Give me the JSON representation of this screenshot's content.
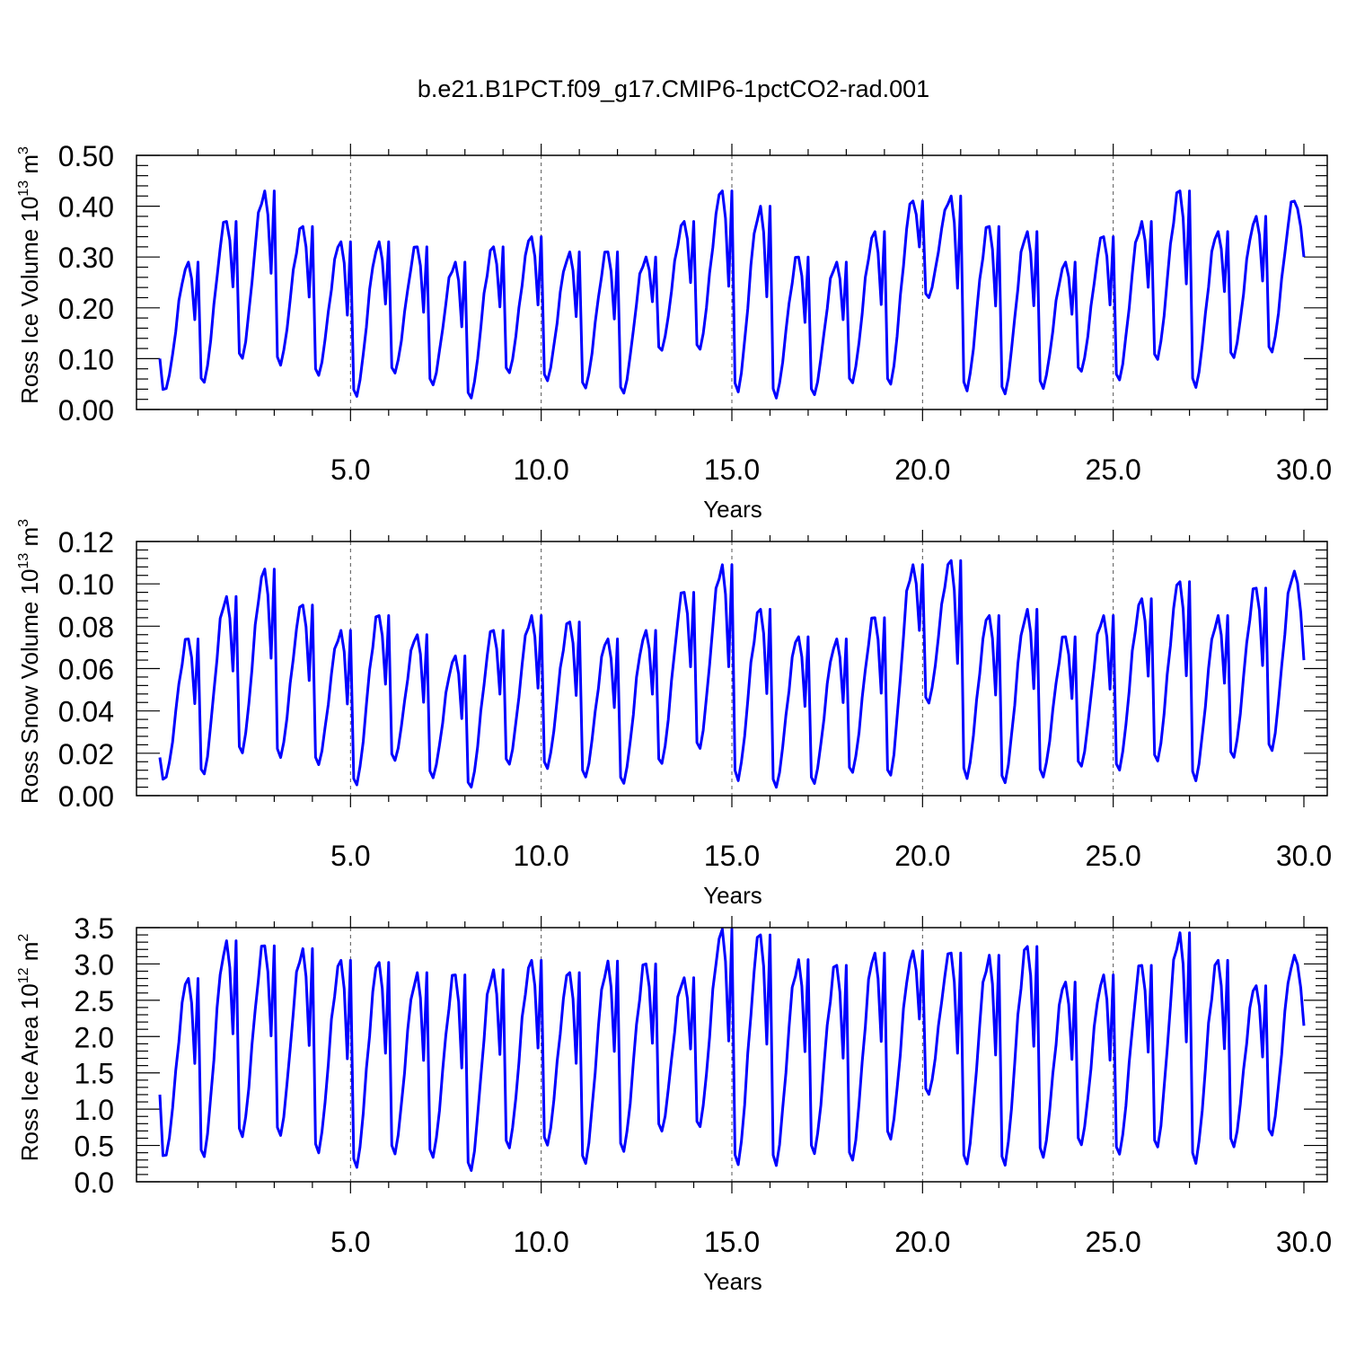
{
  "title": "b.e21.B1PCT.f09_g17.CMIP6-1pctCO2-rad.001",
  "chart_data": [
    {
      "type": "line",
      "ylabel_main": "Ross Ice Volume 10",
      "ylabel_exp": "13",
      "ylabel_unit": " m",
      "ylabel_unit_exp": "3",
      "xlabel": "Years",
      "xlim": [
        0.0,
        30.0
      ],
      "ylim": [
        0.0,
        0.5
      ],
      "x_ticks": [
        5,
        10,
        15,
        20,
        25,
        30
      ],
      "x_tick_labels": [
        "5.0",
        "10.0",
        "15.0",
        "20.0",
        "25.0",
        "30.0"
      ],
      "y_ticks": [
        0,
        0.1,
        0.2,
        0.3,
        0.4,
        0.5
      ],
      "y_tick_labels": [
        "0.00",
        "0.10",
        "0.20",
        "0.30",
        "0.40",
        "0.50"
      ],
      "grid": "dashed vertical lines at 5-year marks",
      "line_color": "#0000ff",
      "annual_peaks": [
        0.29,
        0.37,
        0.43,
        0.36,
        0.33,
        0.33,
        0.32,
        0.29,
        0.32,
        0.34,
        0.31,
        0.31,
        0.3,
        0.37,
        0.43,
        0.4,
        0.3,
        0.29,
        0.35,
        0.41,
        0.42,
        0.36,
        0.35,
        0.29,
        0.34,
        0.37,
        0.43,
        0.35,
        0.38,
        0.41
      ],
      "annual_troughs": [
        0.035,
        0.045,
        0.092,
        0.08,
        0.06,
        0.018,
        0.065,
        0.042,
        0.015,
        0.065,
        0.05,
        0.035,
        0.025,
        0.11,
        0.11,
        0.025,
        0.015,
        0.022,
        0.045,
        0.04,
        0.215,
        0.028,
        0.022,
        0.035,
        0.068,
        0.05,
        0.09,
        0.035,
        0.095,
        0.105
      ],
      "start_value": 0.1,
      "end_value": 0.3
    },
    {
      "type": "line",
      "ylabel_main": "Ross Snow Volume 10",
      "ylabel_exp": "13",
      "ylabel_unit": " m",
      "ylabel_unit_exp": "3",
      "xlabel": "Years",
      "xlim": [
        0.0,
        30.0
      ],
      "ylim": [
        0.0,
        0.12
      ],
      "x_ticks": [
        5,
        10,
        15,
        20,
        25,
        30
      ],
      "x_tick_labels": [
        "5.0",
        "10.0",
        "15.0",
        "20.0",
        "25.0",
        "30.0"
      ],
      "y_ticks": [
        0,
        0.02,
        0.04,
        0.06,
        0.08,
        0.1,
        0.12
      ],
      "y_tick_labels": [
        "0.00",
        "0.02",
        "0.04",
        "0.06",
        "0.08",
        "0.10",
        "0.12"
      ],
      "grid": "dashed vertical lines at 5-year marks",
      "line_color": "#0000ff",
      "annual_peaks": [
        0.074,
        0.094,
        0.107,
        0.09,
        0.078,
        0.085,
        0.076,
        0.066,
        0.078,
        0.085,
        0.082,
        0.074,
        0.078,
        0.096,
        0.109,
        0.088,
        0.075,
        0.074,
        0.084,
        0.109,
        0.111,
        0.085,
        0.088,
        0.075,
        0.085,
        0.093,
        0.101,
        0.085,
        0.098,
        0.106
      ],
      "annual_troughs": [
        0.007,
        0.008,
        0.018,
        0.016,
        0.013,
        0.003,
        0.015,
        0.007,
        0.002,
        0.013,
        0.011,
        0.007,
        0.004,
        0.013,
        0.02,
        0.005,
        0.002,
        0.004,
        0.009,
        0.007,
        0.042,
        0.006,
        0.004,
        0.007,
        0.012,
        0.01,
        0.014,
        0.005,
        0.016,
        0.019
      ],
      "start_value": 0.018,
      "end_value": 0.064
    },
    {
      "type": "line",
      "ylabel_main": "Ross Ice Area 10",
      "ylabel_exp": "12",
      "ylabel_unit": " m",
      "ylabel_unit_exp": "2",
      "xlabel": "Years",
      "xlim": [
        0.0,
        30.0
      ],
      "ylim": [
        0.0,
        3.5
      ],
      "x_ticks": [
        5,
        10,
        15,
        20,
        25,
        30
      ],
      "x_tick_labels": [
        "5.0",
        "10.0",
        "15.0",
        "20.0",
        "25.0",
        "30.0"
      ],
      "y_ticks": [
        0,
        0.5,
        1,
        1.5,
        2,
        2.5,
        3,
        3.5
      ],
      "y_tick_labels": [
        "0.0",
        "0.5",
        "1.0",
        "1.5",
        "2.0",
        "2.5",
        "3.0",
        "3.5"
      ],
      "grid": "dashed vertical lines at 5-year marks",
      "line_color": "#0000ff",
      "annual_peaks": [
        2.8,
        3.32,
        3.25,
        3.21,
        3.05,
        3.02,
        2.88,
        2.85,
        2.92,
        3.05,
        2.88,
        3.04,
        3.0,
        2.81,
        3.48,
        3.4,
        3.06,
        2.98,
        3.15,
        3.18,
        3.15,
        3.12,
        3.24,
        2.75,
        2.85,
        2.98,
        3.43,
        3.05,
        2.7,
        3.12
      ],
      "annual_troughs": [
        0.3,
        0.27,
        0.55,
        0.57,
        0.33,
        0.12,
        0.32,
        0.27,
        0.08,
        0.4,
        0.44,
        0.18,
        0.35,
        0.64,
        0.69,
        0.15,
        0.15,
        0.32,
        0.22,
        0.52,
        1.15,
        0.17,
        0.15,
        0.27,
        0.45,
        0.31,
        0.4,
        0.18,
        0.42,
        0.58
      ],
      "start_value": 1.2,
      "end_value": 2.15
    }
  ]
}
